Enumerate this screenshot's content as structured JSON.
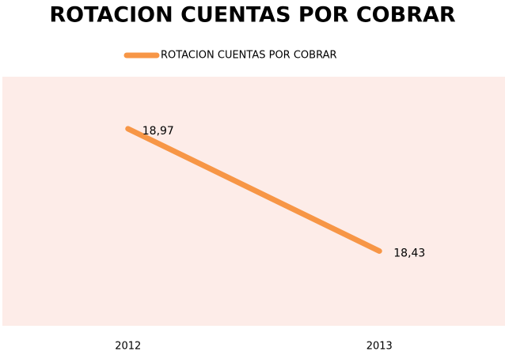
{
  "chart_data": {
    "type": "line",
    "title": "ROTACION CUENTAS POR COBRAR",
    "categories": [
      "2012",
      "2013"
    ],
    "series": [
      {
        "name": "ROTACION CUENTAS POR COBRAR",
        "color": "#f79646",
        "values": [
          18.97,
          18.43
        ],
        "value_labels": [
          "18,97",
          "18,43"
        ]
      }
    ],
    "ylim": [
      18.1,
      19.2
    ],
    "legend": "top",
    "plot_background": "#fdece8"
  }
}
